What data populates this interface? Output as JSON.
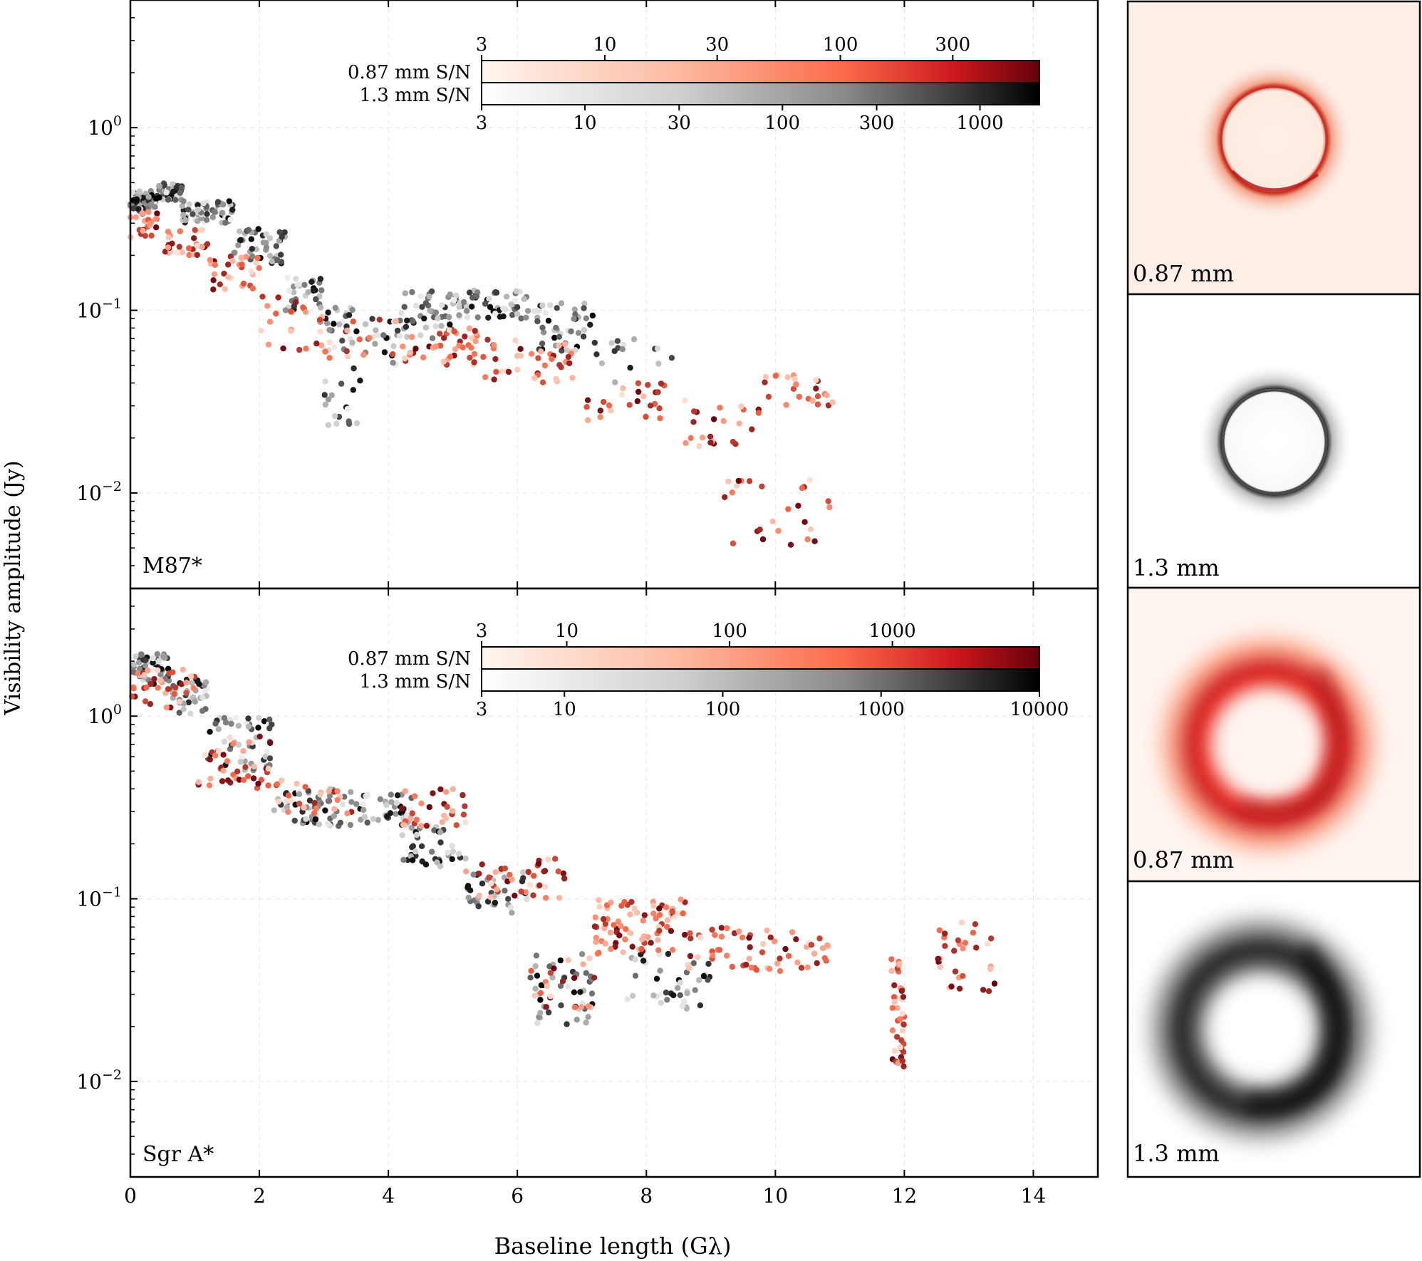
{
  "figure": {
    "ylabel": "Visibility amplitude (Jy)",
    "xlabel": "Baseline length (Gλ)",
    "xlim": [
      0,
      15
    ],
    "xticks": [
      "0",
      "2",
      "4",
      "6",
      "8",
      "10",
      "12",
      "14"
    ],
    "xtick_values": [
      0,
      2,
      4,
      6,
      8,
      10,
      12,
      14
    ],
    "colors": {
      "red_light": "#fee0d2",
      "red_mid": "#fb6a4a",
      "red_dark": "#67000d",
      "gray_light": "#f0f0f0",
      "gray_dark": "#000000"
    }
  },
  "chart_data": [
    {
      "id": "m87",
      "type": "scatter",
      "label": "M87*",
      "ylim": [
        0.003,
        5
      ],
      "yscale": "log",
      "yticks": [
        {
          "value": 1,
          "base": "10",
          "exp": "0"
        },
        {
          "value": 0.1,
          "base": "10",
          "exp": "−1"
        },
        {
          "value": 0.01,
          "base": "10",
          "exp": "−2"
        }
      ],
      "colorbars": {
        "red": {
          "label": "0.87 mm S/N",
          "range": [
            3,
            700
          ],
          "ticks": [
            "3",
            "10",
            "30",
            "100",
            "300"
          ],
          "tick_values": [
            3,
            10,
            30,
            100,
            300
          ]
        },
        "gray": {
          "label": "1.3 mm S/N",
          "range": [
            3,
            2000
          ],
          "ticks": [
            "3",
            "10",
            "30",
            "100",
            "300",
            "1000"
          ],
          "tick_values": [
            3,
            10,
            30,
            100,
            300,
            1000
          ]
        }
      },
      "series": [
        {
          "name": "1.3 mm",
          "color": "gray",
          "segments": [
            [
              0.0,
              0.4,
              0.35,
              0.45,
              60
            ],
            [
              0.4,
              0.8,
              0.4,
              0.5,
              55
            ],
            [
              0.8,
              1.6,
              0.3,
              0.4,
              60
            ],
            [
              1.6,
              2.4,
              0.18,
              0.28,
              45
            ],
            [
              2.4,
              3.0,
              0.1,
              0.16,
              30
            ],
            [
              3.0,
              3.6,
              0.06,
              0.11,
              25
            ],
            [
              3.0,
              3.6,
              0.02,
              0.05,
              18
            ],
            [
              3.6,
              4.2,
              0.05,
              0.09,
              22
            ],
            [
              4.2,
              5.0,
              0.07,
              0.13,
              45
            ],
            [
              5.0,
              6.2,
              0.09,
              0.13,
              60
            ],
            [
              6.2,
              7.2,
              0.06,
              0.11,
              45
            ],
            [
              7.2,
              8.4,
              0.04,
              0.07,
              15
            ]
          ]
        },
        {
          "name": "0.87 mm",
          "color": "red",
          "segments": [
            [
              0.0,
              0.5,
              0.25,
              0.35,
              22
            ],
            [
              0.5,
              1.2,
              0.2,
              0.28,
              30
            ],
            [
              1.2,
              2.0,
              0.13,
              0.2,
              30
            ],
            [
              2.0,
              3.0,
              0.06,
              0.12,
              24
            ],
            [
              3.0,
              4.2,
              0.05,
              0.09,
              14
            ],
            [
              4.2,
              5.5,
              0.05,
              0.08,
              45
            ],
            [
              5.5,
              7.0,
              0.04,
              0.07,
              40
            ],
            [
              7.0,
              8.6,
              0.025,
              0.04,
              26
            ],
            [
              8.6,
              9.8,
              0.018,
              0.03,
              22
            ],
            [
              9.8,
              10.9,
              0.03,
              0.045,
              24
            ],
            [
              9.2,
              10.9,
              0.005,
              0.012,
              26
            ]
          ]
        }
      ]
    },
    {
      "id": "sgra",
      "type": "scatter",
      "label": "Sgr A*",
      "ylim": [
        0.003,
        5
      ],
      "yscale": "log",
      "yticks": [
        {
          "value": 1,
          "base": "10",
          "exp": "0"
        },
        {
          "value": 0.1,
          "base": "10",
          "exp": "−1"
        },
        {
          "value": 0.01,
          "base": "10",
          "exp": "−2"
        }
      ],
      "colorbars": {
        "red": {
          "label": "0.87 mm S/N",
          "range": [
            3,
            8000
          ],
          "ticks": [
            "3",
            "10",
            "100",
            "1000"
          ],
          "tick_values": [
            3,
            10,
            100,
            1000
          ]
        },
        "gray": {
          "label": "1.3 mm S/N",
          "range": [
            3,
            10000
          ],
          "ticks": [
            "3",
            "10",
            "100",
            "1000",
            "10000"
          ],
          "tick_values": [
            3,
            10,
            100,
            1000,
            10000
          ]
        }
      },
      "series": [
        {
          "name": "1.3 mm",
          "color": "gray",
          "segments": [
            [
              0.0,
              0.6,
              1.5,
              2.2,
              50
            ],
            [
              0.6,
              1.2,
              1.0,
              1.6,
              40
            ],
            [
              1.2,
              2.2,
              0.5,
              1.0,
              50
            ],
            [
              2.2,
              3.6,
              0.25,
              0.4,
              60
            ],
            [
              3.6,
              4.4,
              0.25,
              0.38,
              40
            ],
            [
              4.2,
              5.2,
              0.15,
              0.25,
              40
            ],
            [
              5.2,
              6.2,
              0.08,
              0.14,
              35
            ],
            [
              6.2,
              7.2,
              0.02,
              0.05,
              45
            ],
            [
              7.6,
              9.0,
              0.025,
              0.05,
              40
            ]
          ]
        },
        {
          "name": "0.87 mm",
          "color": "red",
          "segments": [
            [
              0.0,
              1.0,
              1.1,
              1.8,
              35
            ],
            [
              1.0,
              2.2,
              0.4,
              0.8,
              40
            ],
            [
              2.2,
              3.5,
              0.28,
              0.45,
              25
            ],
            [
              4.2,
              5.2,
              0.25,
              0.4,
              30
            ],
            [
              5.2,
              6.8,
              0.1,
              0.17,
              40
            ],
            [
              6.2,
              7.2,
              0.025,
              0.05,
              20
            ],
            [
              7.2,
              8.6,
              0.05,
              0.1,
              80
            ],
            [
              8.6,
              10.9,
              0.04,
              0.07,
              60
            ],
            [
              11.8,
              12.0,
              0.012,
              0.05,
              40
            ],
            [
              12.5,
              13.4,
              0.03,
              0.08,
              30
            ]
          ]
        }
      ]
    }
  ],
  "panels": [
    {
      "label": "0.87 mm",
      "color": "red",
      "morph": "thin"
    },
    {
      "label": "1.3 mm",
      "color": "gray",
      "morph": "thin"
    },
    {
      "label": "0.87 mm",
      "color": "red",
      "morph": "thick"
    },
    {
      "label": "1.3 mm",
      "color": "gray",
      "morph": "thick"
    }
  ]
}
